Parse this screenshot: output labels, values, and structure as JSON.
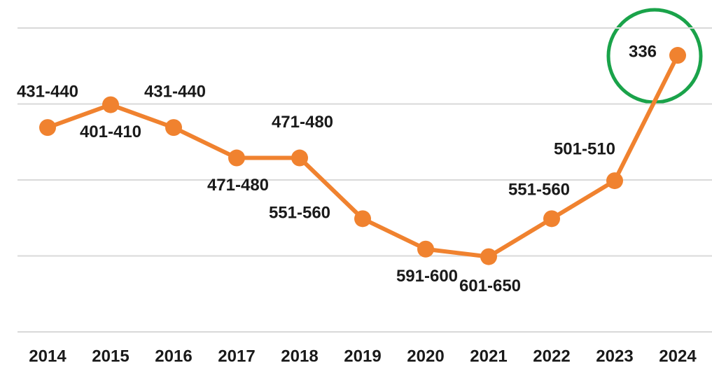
{
  "chart_data": {
    "type": "line",
    "categories": [
      "2014",
      "2015",
      "2016",
      "2017",
      "2018",
      "2019",
      "2020",
      "2021",
      "2022",
      "2023",
      "2024"
    ],
    "series": [
      {
        "color": "#f0822f",
        "values": [
          431,
          401,
          431,
          471,
          471,
          551,
          591,
          601,
          551,
          501,
          336
        ],
        "value_labels": [
          "431-440",
          "401-410",
          "431-440",
          "471-480",
          "471-480",
          "551-560",
          "591-600",
          "601-650",
          "551-560",
          "501-510",
          "336"
        ]
      }
    ],
    "ylim": [
      700,
      300
    ],
    "yticks": [
      300,
      400,
      500,
      600,
      700
    ],
    "grid": true
  }
}
